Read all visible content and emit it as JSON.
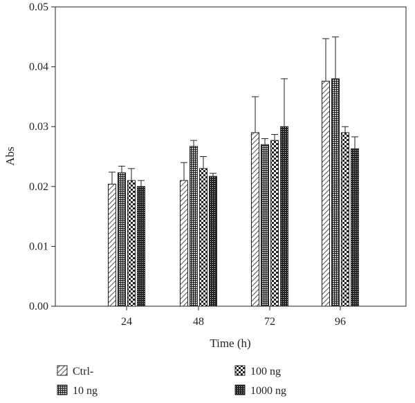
{
  "chart_data": {
    "type": "bar",
    "title": "",
    "xlabel": "Time (h)",
    "ylabel": "Abs",
    "ylim": [
      0,
      0.05
    ],
    "yticks": [
      "0.00",
      "0.01",
      "0.02",
      "0.03",
      "0.04",
      "0.05"
    ],
    "categories": [
      "24",
      "48",
      "72",
      "96"
    ],
    "error_bars": "upper",
    "grid": false,
    "legend_position": "bottom",
    "series": [
      {
        "name": "Ctrl-",
        "pattern": "diagonal-hatch",
        "values": [
          0.0204,
          0.021,
          0.029,
          0.0376
        ],
        "errors": [
          0.002,
          0.003,
          0.006,
          0.0071
        ]
      },
      {
        "name": "10 ng",
        "pattern": "dense-grid",
        "values": [
          0.0223,
          0.0267,
          0.027,
          0.038
        ],
        "errors": [
          0.0011,
          0.001,
          0.001,
          0.007
        ]
      },
      {
        "name": "100 ng",
        "pattern": "checkerboard",
        "values": [
          0.021,
          0.023,
          0.0277,
          0.029
        ],
        "errors": [
          0.002,
          0.002,
          0.001,
          0.001
        ]
      },
      {
        "name": "1000 ng",
        "pattern": "dark-crosshatch",
        "values": [
          0.02,
          0.0217,
          0.03,
          0.0263
        ],
        "errors": [
          0.001,
          0.0005,
          0.008,
          0.002
        ]
      }
    ]
  }
}
